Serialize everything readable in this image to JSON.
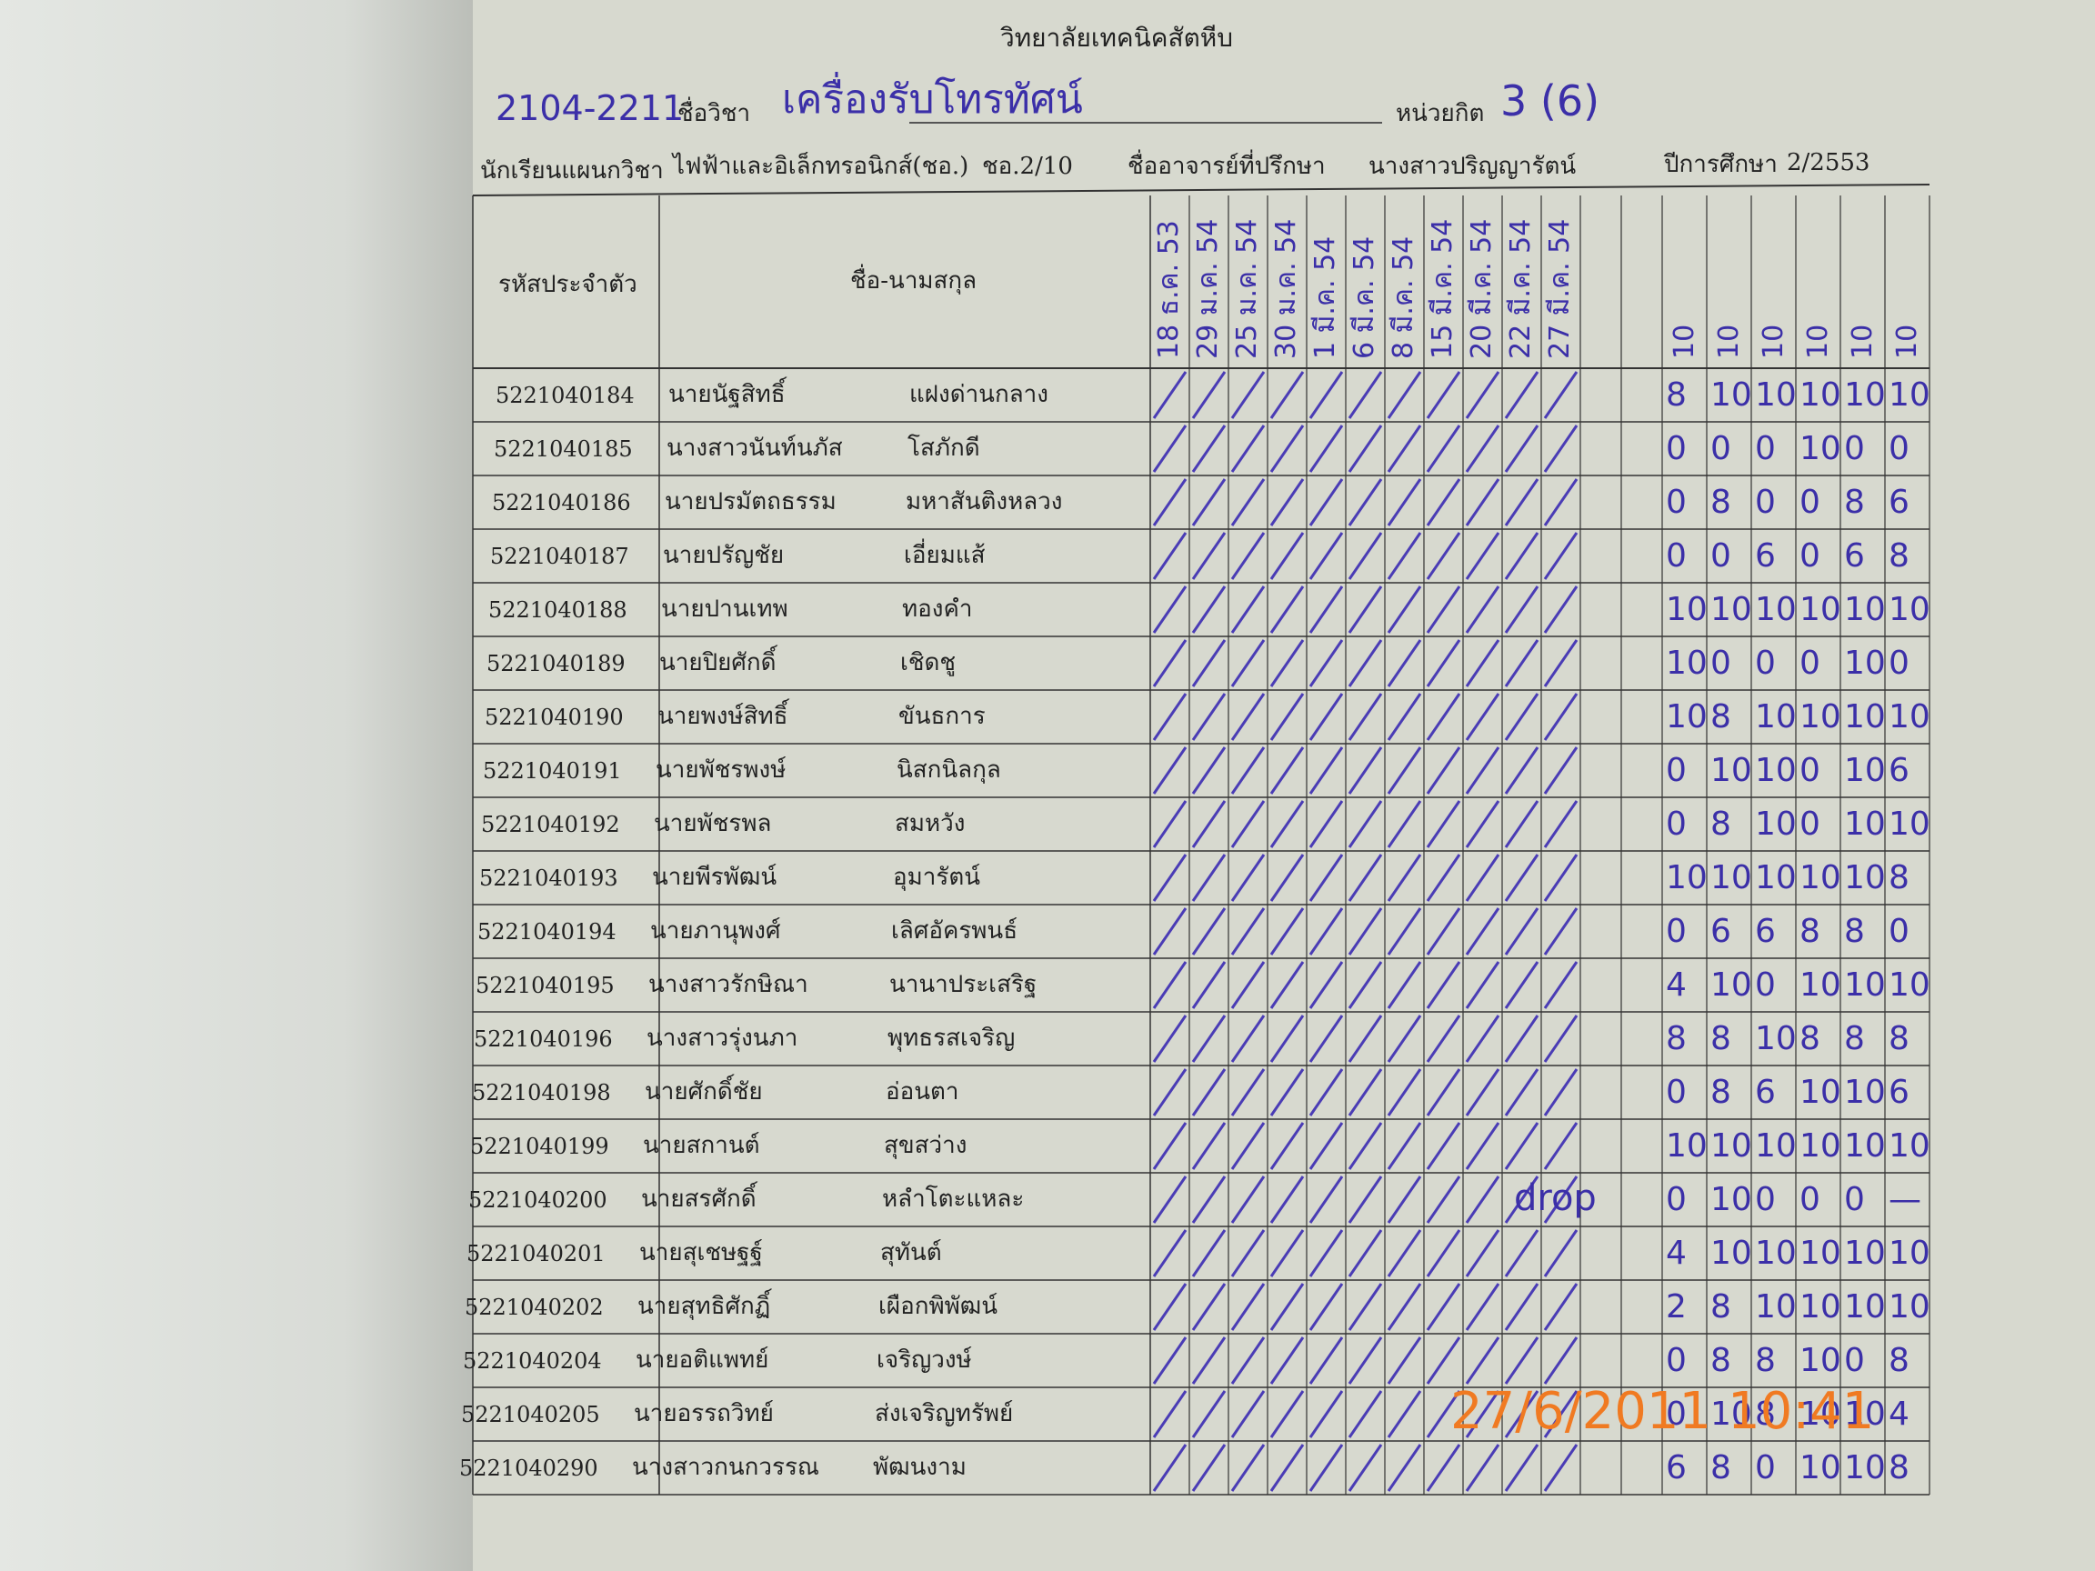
{
  "header": {
    "college": "วิทยาลัยเทคนิคสัตหีบ",
    "course_code": "2104-2211",
    "course_label": "ชื่อวิชา",
    "course_name": "เครื่องรับโทรทัศน์",
    "credit_label": "หน่วยกิต",
    "credit": "3 (6)",
    "dept_label": "นักเรียนแผนกวิชา",
    "dept": "ไฟฟ้าและอิเล็กทรอนิกส์(ชอ.)",
    "class": "ชอ.2/10",
    "advisor_label": "ชื่ออาจารย์ที่ปรึกษา",
    "advisor": "นางสาวปริญญารัตน์",
    "year_label": "ปีการศึกษา",
    "year": "2/2553"
  },
  "table": {
    "id_header": "รหัสประจำตัว",
    "name_header": "ชื่อ-นามสกุล",
    "dates": [
      "18 ธ.ค. 53",
      "29 ม.ค. 54",
      "25 ม.ค. 54",
      "30 ม.ค. 54",
      "1 มี.ค. 54",
      "6 มี.ค. 54",
      "8 มี.ค. 54",
      "15 มี.ค. 54",
      "20 มี.ค. 54",
      "22 มี.ค. 54",
      "27 มี.ค. 54"
    ],
    "score_headers": [
      "10",
      "10",
      "10",
      "10",
      "10",
      "10"
    ],
    "rows": [
      {
        "id": "5221040184",
        "name": "นายนัฐสิทธิ์",
        "surname": "แฝงด่านกลาง",
        "scores": [
          "8",
          "10",
          "10",
          "10",
          "10",
          "10"
        ]
      },
      {
        "id": "5221040185",
        "name": "นางสาวนันท์นภัส",
        "surname": "โสภักดี",
        "scores": [
          "0",
          "0",
          "0",
          "10",
          "0",
          "0"
        ]
      },
      {
        "id": "5221040186",
        "name": "นายปรมัตถธรรม",
        "surname": "มหาสันติงหลวง",
        "scores": [
          "0",
          "8",
          "0",
          "0",
          "8",
          "6"
        ]
      },
      {
        "id": "5221040187",
        "name": "นายปรัญชัย",
        "surname": "เอี่ยมแส้",
        "scores": [
          "0",
          "0",
          "6",
          "0",
          "6",
          "8"
        ]
      },
      {
        "id": "5221040188",
        "name": "นายปานเทพ",
        "surname": "ทองคำ",
        "scores": [
          "10",
          "10",
          "10",
          "10",
          "10",
          "10"
        ]
      },
      {
        "id": "5221040189",
        "name": "นายปิยศักดิ์",
        "surname": "เชิดชู",
        "scores": [
          "10",
          "0",
          "0",
          "0",
          "10",
          "0"
        ]
      },
      {
        "id": "5221040190",
        "name": "นายพงษ์สิทธิ์",
        "surname": "ขันธการ",
        "scores": [
          "10",
          "8",
          "10",
          "10",
          "10",
          "10"
        ]
      },
      {
        "id": "5221040191",
        "name": "นายพัชรพงษ์",
        "surname": "นิสกนิลกุล",
        "scores": [
          "0",
          "10",
          "10",
          "0",
          "10",
          "6"
        ]
      },
      {
        "id": "5221040192",
        "name": "นายพัชรพล",
        "surname": "สมหวัง",
        "scores": [
          "0",
          "8",
          "10",
          "0",
          "10",
          "10"
        ]
      },
      {
        "id": "5221040193",
        "name": "นายพีรพัฒน์",
        "surname": "อุมารัตน์",
        "scores": [
          "10",
          "10",
          "10",
          "10",
          "10",
          "8"
        ]
      },
      {
        "id": "5221040194",
        "name": "นายภานุพงศ์",
        "surname": "เลิศอัครพนธ์",
        "scores": [
          "0",
          "6",
          "6",
          "8",
          "8",
          "0"
        ]
      },
      {
        "id": "5221040195",
        "name": "นางสาวรักษิณา",
        "surname": "นานาประเสริฐ",
        "scores": [
          "4",
          "10",
          "0",
          "10",
          "10",
          "10"
        ]
      },
      {
        "id": "5221040196",
        "name": "นางสาวรุ่งนภา",
        "surname": "พุทธรสเจริญ",
        "scores": [
          "8",
          "8",
          "10",
          "8",
          "8",
          "8"
        ]
      },
      {
        "id": "5221040198",
        "name": "นายศักดิ์ชัย",
        "surname": "อ่อนตา",
        "scores": [
          "0",
          "8",
          "6",
          "10",
          "10",
          "6"
        ]
      },
      {
        "id": "5221040199",
        "name": "นายสกานต์",
        "surname": "สุขสว่าง",
        "scores": [
          "10",
          "10",
          "10",
          "10",
          "10",
          "10"
        ]
      },
      {
        "id": "5221040200",
        "name": "นายสรศักดิ์",
        "surname": "หลำโตะแหละ",
        "scores": [
          "0",
          "10",
          "0",
          "0",
          "0",
          "—"
        ]
      },
      {
        "id": "5221040201",
        "name": "นายสุเชษฐฐ์",
        "surname": "สุทันต์",
        "scores": [
          "4",
          "10",
          "10",
          "10",
          "10",
          "10"
        ]
      },
      {
        "id": "5221040202",
        "name": "นายสุทธิศักฏิ์",
        "surname": "เผือกพิพัฒน์",
        "scores": [
          "2",
          "8",
          "10",
          "10",
          "10",
          "10"
        ]
      },
      {
        "id": "5221040204",
        "name": "นายอติแพทย์",
        "surname": "เจริญวงษ์",
        "scores": [
          "0",
          "8",
          "8",
          "10",
          "0",
          "8"
        ]
      },
      {
        "id": "5221040205",
        "name": "นายอรรถวิทย์",
        "surname": "ส่งเจริญทรัพย์",
        "scores": [
          "0",
          "10",
          "8",
          "10",
          "10",
          "4"
        ]
      },
      {
        "id": "5221040290",
        "name": "นางสาวกนกวรรณ",
        "surname": "พัฒนงาม",
        "scores": [
          "6",
          "8",
          "0",
          "10",
          "10",
          "8"
        ]
      }
    ],
    "drop_note": "drop"
  },
  "timestamp": "27/6/2011 10:41"
}
